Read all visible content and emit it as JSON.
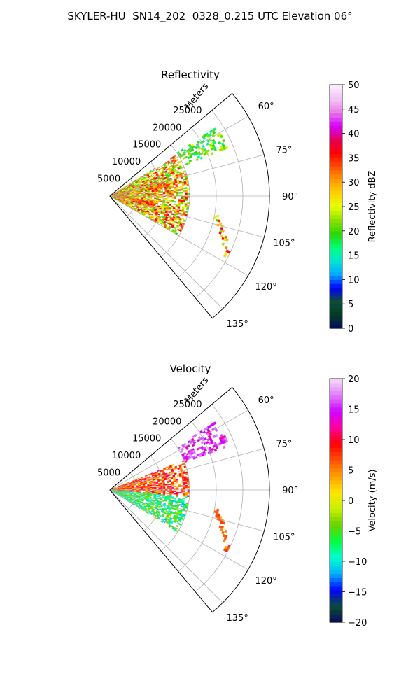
{
  "title": "SKYLER-HU  SN14_202  0328_0.215 UTC Elevation 06°",
  "chart_data": [
    {
      "type": "heatmap",
      "subtype": "polar-sector (PPI radar sweep)",
      "title": "Reflectivity",
      "radial_label": "Meters",
      "r_ticks": [
        "5000",
        "10000",
        "15000",
        "20000",
        "25000"
      ],
      "r_tick_values": [
        5000,
        10000,
        15000,
        20000,
        25000
      ],
      "rlim": [
        0,
        30000
      ],
      "theta_ticks": [
        "60°",
        "75°",
        "90°",
        "105°",
        "120°",
        "135°"
      ],
      "theta_tick_values": [
        60,
        75,
        90,
        105,
        120,
        135
      ],
      "thetalim": [
        50,
        140
      ],
      "grid": true,
      "colorbar": {
        "label": "Reflectivity dBZ",
        "range": [
          0,
          50
        ],
        "ticks": [
          "0",
          "5",
          "10",
          "15",
          "20",
          "25",
          "30",
          "35",
          "40",
          "45",
          "50"
        ],
        "tick_values": [
          0,
          5,
          10,
          15,
          20,
          25,
          30,
          35,
          40,
          45,
          50
        ],
        "colormap": "NWS reflectivity",
        "stops": [
          "#08085c",
          "#003a2a",
          "#0b4f37",
          "#0000ff",
          "#00a8ff",
          "#00e6d5",
          "#00ff78",
          "#2bd600",
          "#8de000",
          "#e8ff00",
          "#ffd200",
          "#ff9a00",
          "#ff4a00",
          "#ff0000",
          "#e0005e",
          "#d600ff",
          "#e97fe9",
          "#f4c4f4",
          "#fdf0fd"
        ]
      },
      "echo_regions": [
        {
          "r_range": [
            0,
            15000
          ],
          "theta_range": [
            58,
            120
          ],
          "dbz_range": [
            18,
            38
          ],
          "description": "main echo mass near radar"
        },
        {
          "r_range": [
            7000,
            11500
          ],
          "theta_range": [
            75,
            82
          ],
          "dbz_range": [
            28,
            38
          ],
          "description": "core"
        },
        {
          "r_range": [
            4000,
            8500
          ],
          "theta_range": [
            96,
            106
          ],
          "dbz_range": [
            28,
            38
          ],
          "description": "core"
        },
        {
          "r_range": [
            15000,
            24000
          ],
          "theta_range": [
            57,
            68
          ],
          "dbz_range": [
            15,
            25
          ],
          "description": "distant cells"
        },
        {
          "r_range": [
            20000,
            25000
          ],
          "theta_range": [
            100,
            118
          ],
          "dbz_range": [
            20,
            40
          ],
          "description": "distant thin line"
        }
      ]
    },
    {
      "type": "heatmap",
      "subtype": "polar-sector (PPI radar sweep)",
      "title": "Velocity",
      "radial_label": "Meters",
      "r_ticks": [
        "5000",
        "10000",
        "15000",
        "20000",
        "25000"
      ],
      "r_tick_values": [
        5000,
        10000,
        15000,
        20000,
        25000
      ],
      "rlim": [
        0,
        30000
      ],
      "theta_ticks": [
        "60°",
        "75°",
        "90°",
        "105°",
        "120°",
        "135°"
      ],
      "theta_tick_values": [
        60,
        75,
        90,
        105,
        120,
        135
      ],
      "thetalim": [
        50,
        140
      ],
      "grid": true,
      "colorbar": {
        "label": "Velocity (m/s)",
        "range": [
          -20,
          20
        ],
        "ticks": [
          "−20",
          "−15",
          "−10",
          "−5",
          "0",
          "5",
          "10",
          "15",
          "20"
        ],
        "tick_values": [
          -20,
          -15,
          -10,
          -5,
          0,
          5,
          10,
          15,
          20
        ],
        "colormap": "NWS velocity",
        "stops": [
          "#08085c",
          "#0b4f37",
          "#0000ff",
          "#00b0ff",
          "#00ffd0",
          "#00ff40",
          "#6cd000",
          "#c8f000",
          "#ffe600",
          "#ffa000",
          "#ff5000",
          "#ff0000",
          "#ff00a0",
          "#d000ff",
          "#e080ff",
          "#f8d8f8"
        ]
      },
      "echo_regions": [
        {
          "r_range": [
            0,
            15000
          ],
          "theta_range": [
            68,
            95
          ],
          "velocity_range": [
            2,
            12
          ],
          "description": "receding (warm colors)"
        },
        {
          "r_range": [
            0,
            15000
          ],
          "theta_range": [
            95,
            122
          ],
          "velocity_range": [
            -12,
            -2
          ],
          "description": "approaching (green/cyan)"
        },
        {
          "r_range": [
            15000,
            24000
          ],
          "theta_range": [
            57,
            70
          ],
          "velocity_range": [
            12,
            18
          ],
          "description": "distant magenta cells"
        },
        {
          "r_range": [
            20000,
            25000
          ],
          "theta_range": [
            100,
            118
          ],
          "velocity_range": [
            4,
            8
          ],
          "description": "distant thin orange line"
        }
      ]
    }
  ]
}
